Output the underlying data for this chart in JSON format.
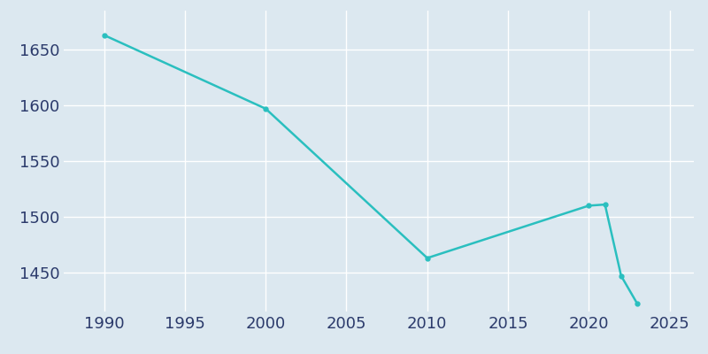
{
  "years": [
    1990,
    2000,
    2010,
    2020,
    2021,
    2022,
    2023
  ],
  "population": [
    1663,
    1597,
    1463,
    1510,
    1511,
    1447,
    1422
  ],
  "line_color": "#2abfbf",
  "marker": "o",
  "marker_size": 3.5,
  "background_color": "#dce8f0",
  "plot_bg_color": "#dce8f0",
  "grid_color": "#ffffff",
  "text_color": "#2B3A6B",
  "xlim": [
    1987.5,
    2026.5
  ],
  "ylim": [
    1415,
    1685
  ],
  "xticks": [
    1990,
    1995,
    2000,
    2005,
    2010,
    2015,
    2020,
    2025
  ],
  "yticks": [
    1450,
    1500,
    1550,
    1600,
    1650
  ],
  "tick_fontsize": 13,
  "linewidth": 1.8
}
